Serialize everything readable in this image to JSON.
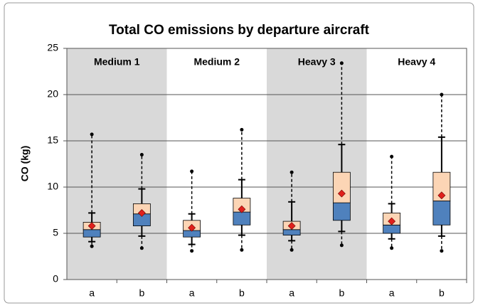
{
  "chart_data": {
    "type": "box",
    "title": "Total CO emissions by departure aircraft",
    "ylabel": "CO (kg)",
    "ylim": [
      0,
      25
    ],
    "yticks": [
      0,
      5,
      10,
      15,
      20,
      25
    ],
    "grid": true,
    "colors": {
      "lower_box": "#4f81bd",
      "upper_box": "#fcd5b5",
      "mean": "#e0201b",
      "shade": "#d9d9d9"
    },
    "groups": [
      {
        "name": "Medium 1",
        "shaded": true,
        "boxes": [
          {
            "label": "a",
            "min": 3.6,
            "whisker_low": 4.1,
            "q1": 4.6,
            "median": 5.4,
            "q3": 6.2,
            "whisker_high": 7.2,
            "max": 15.7,
            "mean": 5.8
          },
          {
            "label": "b",
            "min": 3.4,
            "whisker_low": 4.7,
            "q1": 5.8,
            "median": 7.1,
            "q3": 8.2,
            "whisker_high": 9.8,
            "max": 13.5,
            "mean": 7.2
          }
        ]
      },
      {
        "name": "Medium 2",
        "shaded": false,
        "boxes": [
          {
            "label": "a",
            "min": 3.1,
            "whisker_low": 3.8,
            "q1": 4.6,
            "median": 5.3,
            "q3": 6.4,
            "whisker_high": 7.1,
            "max": 11.7,
            "mean": 5.6
          },
          {
            "label": "b",
            "min": 3.2,
            "whisker_low": 4.8,
            "q1": 5.9,
            "median": 7.3,
            "q3": 8.8,
            "whisker_high": 10.8,
            "max": 16.2,
            "mean": 7.6
          }
        ]
      },
      {
        "name": "Heavy 3",
        "shaded": true,
        "boxes": [
          {
            "label": "a",
            "min": 3.2,
            "whisker_low": 4.2,
            "q1": 4.8,
            "median": 5.4,
            "q3": 6.3,
            "whisker_high": 8.4,
            "max": 11.6,
            "mean": 5.8
          },
          {
            "label": "b",
            "min": 3.7,
            "whisker_low": 5.2,
            "q1": 6.4,
            "median": 8.3,
            "q3": 11.6,
            "whisker_high": 14.6,
            "max": 23.4,
            "mean": 9.3
          }
        ]
      },
      {
        "name": "Heavy 4",
        "shaded": false,
        "boxes": [
          {
            "label": "a",
            "min": 3.4,
            "whisker_low": 4.4,
            "q1": 5.0,
            "median": 5.9,
            "q3": 7.2,
            "whisker_high": 8.2,
            "max": 13.3,
            "mean": 6.3
          },
          {
            "label": "b",
            "min": 3.1,
            "whisker_low": 4.7,
            "q1": 5.9,
            "median": 8.5,
            "q3": 11.6,
            "whisker_high": 15.4,
            "max": 20.0,
            "mean": 9.1
          }
        ]
      }
    ]
  }
}
